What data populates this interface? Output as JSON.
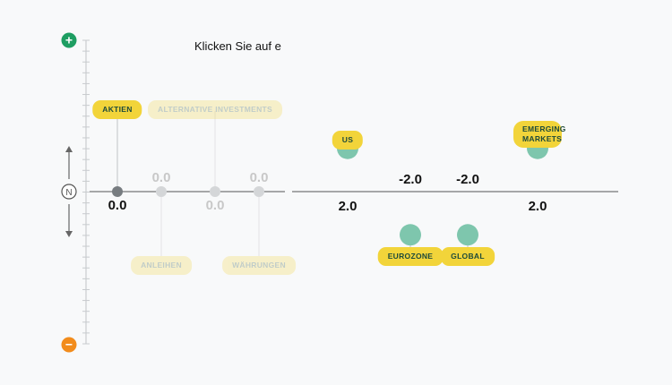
{
  "instruction": "Klicken Sie auf e",
  "scale": {
    "plus_label": "+",
    "minus_label": "−",
    "neutral_label": "N",
    "plus_color": "#1e9e62",
    "minus_color": "#f28c1c",
    "neutral_color": "#555555"
  },
  "colors": {
    "active_dot": "#777c80",
    "inactive_dot": "#d4d6d8",
    "selected_dot": "#7ec6ad",
    "pill": "#f2d43a",
    "pill_text": "#1d4a3a"
  },
  "chart_data": {
    "type": "scatter",
    "ylim": [
      -7,
      7
    ],
    "groups": {
      "asset_classes": [
        {
          "label": "AKTIEN",
          "value": 0.0,
          "value_label": "0.0",
          "state": "active",
          "label_position": "top"
        },
        {
          "label": "ANLEIHEN",
          "value": 0.0,
          "value_label": "0.0",
          "state": "inactive",
          "label_position": "bottom"
        },
        {
          "label": "ALTERNATIVE INVESTMENTS",
          "value": 0.0,
          "value_label": "0.0",
          "state": "inactive",
          "label_position": "top"
        },
        {
          "label": "WÄHRUNGEN",
          "value": 0.0,
          "value_label": "0.0",
          "state": "inactive",
          "label_position": "bottom"
        }
      ],
      "regions": [
        {
          "label": "US",
          "value": 2.0,
          "value_label": "2.0",
          "state": "selected",
          "label_position": "top"
        },
        {
          "label": "EUROZONE",
          "value": -2.0,
          "value_label": "-2.0",
          "state": "selected",
          "label_position": "bottom"
        },
        {
          "label": "GLOBAL",
          "value": -2.0,
          "value_label": "-2.0",
          "state": "selected",
          "label_position": "bottom"
        },
        {
          "label": "EMERGING MARKETS",
          "value": 2.0,
          "value_label": "2.0",
          "state": "selected",
          "label_position": "top"
        }
      ]
    }
  }
}
